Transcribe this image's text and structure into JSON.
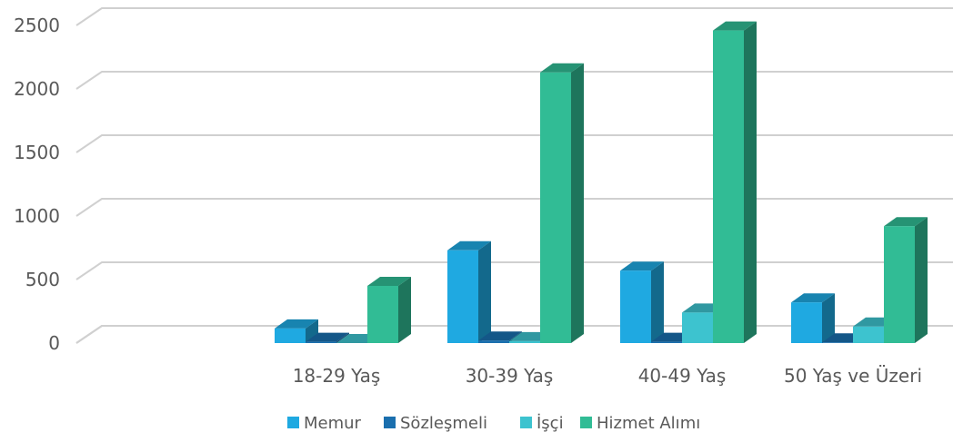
{
  "chart_data": {
    "type": "bar",
    "style": "3d-clustered-column",
    "categories": [
      "18-29 Yaş",
      "30-39 Yaş",
      "40-49 Yaş",
      "50 Yaş ve Üzeri"
    ],
    "series": [
      {
        "name": "Memur",
        "color": "#1FA9E1",
        "values": [
          115,
          730,
          570,
          320
        ]
      },
      {
        "name": "Sözleşmeli",
        "color": "#1A6FAE",
        "values": [
          10,
          20,
          10,
          5
        ]
      },
      {
        "name": "İşçi",
        "color": "#3DC3CF",
        "values": [
          0,
          15,
          240,
          130
        ]
      },
      {
        "name": "Hizmet Alımı",
        "color": "#31BC95",
        "values": [
          450,
          2130,
          2460,
          920
        ]
      }
    ],
    "y_ticks": [
      "0",
      "500",
      "1000",
      "1500",
      "2000",
      "2500"
    ],
    "ylim": [
      0,
      2500
    ],
    "grid": true,
    "legend_position": "bottom"
  }
}
